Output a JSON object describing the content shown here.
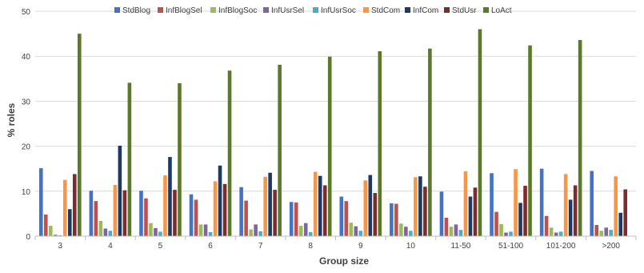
{
  "chart_data": {
    "type": "bar",
    "title": "",
    "xlabel": "Group size",
    "ylabel": "% roles",
    "ylim": [
      0,
      50
    ],
    "yticks": [
      0,
      10,
      20,
      30,
      40,
      50
    ],
    "grid": true,
    "legend_position": "top",
    "categories": [
      "3",
      "4",
      "5",
      "6",
      "7",
      "8",
      "9",
      "10",
      "11-50",
      "51-100",
      "101-200",
      ">200"
    ],
    "series": [
      {
        "name": "StdBlog",
        "color": "#4472c4",
        "values": [
          15.1,
          10.1,
          10.1,
          9.3,
          10.9,
          7.6,
          8.8,
          7.3,
          9.9,
          14.0,
          15.0,
          14.5
        ]
      },
      {
        "name": "InfBlogSel",
        "color": "#c0504d",
        "values": [
          4.8,
          7.8,
          8.4,
          8.1,
          7.9,
          7.5,
          7.8,
          7.2,
          4.1,
          5.4,
          4.5,
          2.5
        ]
      },
      {
        "name": "InfBlogSoc",
        "color": "#9bbb59",
        "values": [
          2.3,
          3.4,
          2.9,
          2.6,
          1.5,
          2.3,
          3.0,
          2.8,
          2.1,
          2.7,
          1.9,
          1.2
        ]
      },
      {
        "name": "InfUsrSel",
        "color": "#8064a2",
        "values": [
          0.3,
          1.7,
          1.8,
          2.6,
          2.6,
          2.9,
          2.2,
          2.1,
          2.6,
          0.8,
          0.8,
          1.9
        ]
      },
      {
        "name": "InfUsrSoc",
        "color": "#4bacc6",
        "values": [
          0.2,
          1.2,
          1.0,
          0.9,
          1.1,
          0.9,
          1.2,
          1.2,
          1.4,
          1.0,
          1.0,
          1.4
        ]
      },
      {
        "name": "StdCom",
        "color": "#f79646",
        "values": [
          12.5,
          11.4,
          13.5,
          12.2,
          13.2,
          14.3,
          12.4,
          13.1,
          14.4,
          14.9,
          13.8,
          13.3
        ]
      },
      {
        "name": "InfCom",
        "color": "#1f3864",
        "values": [
          6.0,
          20.1,
          17.6,
          15.7,
          14.1,
          13.4,
          13.6,
          13.3,
          8.8,
          7.4,
          8.1,
          5.2
        ]
      },
      {
        "name": "StdUsr",
        "color": "#7b2c2c",
        "values": [
          13.8,
          10.2,
          10.3,
          11.6,
          10.3,
          11.3,
          9.6,
          11.0,
          10.8,
          11.2,
          11.3,
          10.4
        ]
      },
      {
        "name": "LoAct",
        "color": "#5a7a2a",
        "values": [
          45.0,
          34.1,
          34.0,
          36.8,
          38.1,
          39.9,
          41.1,
          41.7,
          46.0,
          42.4,
          43.6,
          0
        ]
      }
    ]
  }
}
